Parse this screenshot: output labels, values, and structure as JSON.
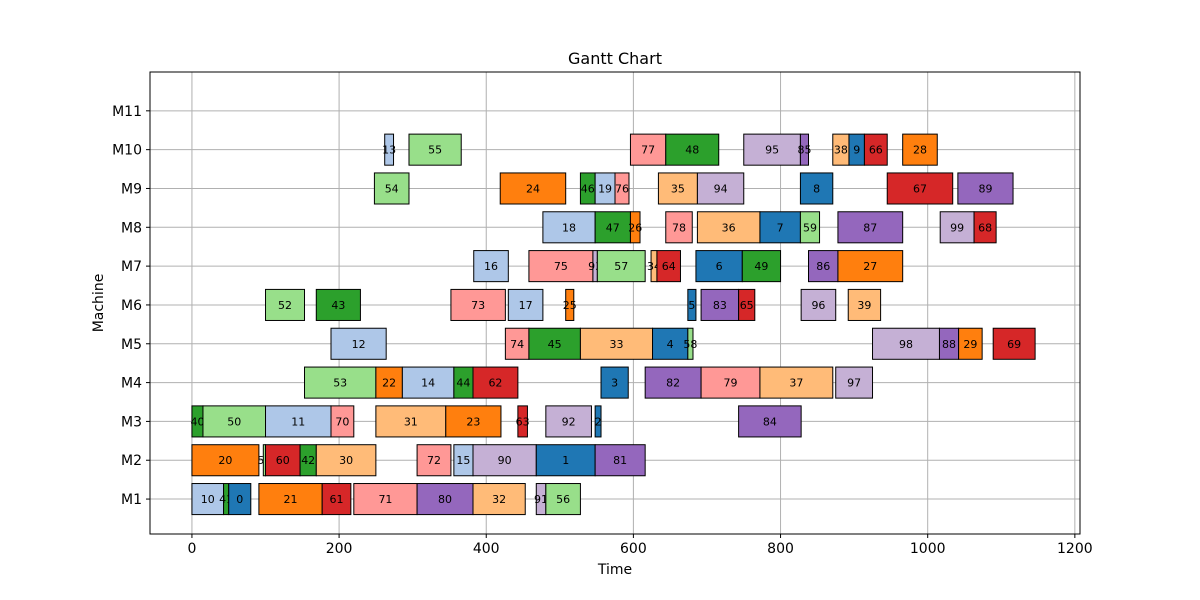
{
  "chart_data": {
    "type": "gantt",
    "title": "Gantt Chart",
    "xlabel": "Time",
    "ylabel": "Machine",
    "xlim": [
      -57,
      1207
    ],
    "ylim": [
      -0.9,
      11
    ],
    "xticks": [
      0,
      200,
      400,
      600,
      800,
      1000,
      1200
    ],
    "machines": [
      "M1",
      "M2",
      "M3",
      "M4",
      "M5",
      "M6",
      "M7",
      "M8",
      "M9",
      "M10",
      "M11"
    ],
    "grid": true,
    "colors": {
      "c_blue": "#1f77b4",
      "c_lightblue": "#aec7e8",
      "c_orange": "#ff7f0e",
      "c_lightorange": "#ffbb78",
      "c_green": "#2ca02c",
      "c_lightgreen": "#98df8a",
      "c_red": "#d62728",
      "c_pink": "#ff9896",
      "c_purple": "#9467bd",
      "c_lavender": "#c5b0d5"
    },
    "tasks": [
      {
        "machine": "M1",
        "job": "10",
        "start": 0,
        "end": 43,
        "color": "c_lightblue"
      },
      {
        "machine": "M1",
        "job": "41",
        "start": 43,
        "end": 50,
        "color": "c_green"
      },
      {
        "machine": "M1",
        "job": "0",
        "start": 50,
        "end": 80,
        "color": "c_blue"
      },
      {
        "machine": "M1",
        "job": "21",
        "start": 91,
        "end": 177,
        "color": "c_orange"
      },
      {
        "machine": "M1",
        "job": "61",
        "start": 177,
        "end": 216,
        "color": "c_red"
      },
      {
        "machine": "M1",
        "job": "71",
        "start": 220,
        "end": 306,
        "color": "c_pink"
      },
      {
        "machine": "M1",
        "job": "80",
        "start": 306,
        "end": 382,
        "color": "c_purple"
      },
      {
        "machine": "M1",
        "job": "32",
        "start": 382,
        "end": 453,
        "color": "c_lightorange"
      },
      {
        "machine": "M1",
        "job": "91",
        "start": 468,
        "end": 481,
        "color": "c_lavender"
      },
      {
        "machine": "M1",
        "job": "56",
        "start": 481,
        "end": 528,
        "color": "c_lightgreen"
      },
      {
        "machine": "M2",
        "job": "20",
        "start": 0,
        "end": 91,
        "color": "c_orange"
      },
      {
        "machine": "M2",
        "job": "51",
        "start": 97,
        "end": 100,
        "color": "c_lightgreen"
      },
      {
        "machine": "M2",
        "job": "60",
        "start": 100,
        "end": 147,
        "color": "c_red"
      },
      {
        "machine": "M2",
        "job": "42",
        "start": 147,
        "end": 169,
        "color": "c_green"
      },
      {
        "machine": "M2",
        "job": "30",
        "start": 169,
        "end": 250,
        "color": "c_lightorange"
      },
      {
        "machine": "M2",
        "job": "72",
        "start": 306,
        "end": 352,
        "color": "c_pink"
      },
      {
        "machine": "M2",
        "job": "15",
        "start": 356,
        "end": 382,
        "color": "c_lightblue"
      },
      {
        "machine": "M2",
        "job": "90",
        "start": 382,
        "end": 468,
        "color": "c_lavender"
      },
      {
        "machine": "M2",
        "job": "1",
        "start": 468,
        "end": 548,
        "color": "c_blue"
      },
      {
        "machine": "M2",
        "job": "81",
        "start": 548,
        "end": 616,
        "color": "c_purple"
      },
      {
        "machine": "M3",
        "job": "40",
        "start": 0,
        "end": 15,
        "color": "c_green"
      },
      {
        "machine": "M3",
        "job": "50",
        "start": 15,
        "end": 100,
        "color": "c_lightgreen"
      },
      {
        "machine": "M3",
        "job": "11",
        "start": 100,
        "end": 189,
        "color": "c_lightblue"
      },
      {
        "machine": "M3",
        "job": "70",
        "start": 189,
        "end": 220,
        "color": "c_pink"
      },
      {
        "machine": "M3",
        "job": "31",
        "start": 250,
        "end": 345,
        "color": "c_lightorange"
      },
      {
        "machine": "M3",
        "job": "23",
        "start": 345,
        "end": 420,
        "color": "c_orange"
      },
      {
        "machine": "M3",
        "job": "63",
        "start": 443,
        "end": 456,
        "color": "c_red"
      },
      {
        "machine": "M3",
        "job": "92",
        "start": 481,
        "end": 543,
        "color": "c_lavender"
      },
      {
        "machine": "M3",
        "job": "2",
        "start": 548,
        "end": 556,
        "color": "c_blue"
      },
      {
        "machine": "M3",
        "job": "84",
        "start": 743,
        "end": 828,
        "color": "c_purple"
      },
      {
        "machine": "M4",
        "job": "53",
        "start": 153,
        "end": 250,
        "color": "c_lightgreen"
      },
      {
        "machine": "M4",
        "job": "22",
        "start": 250,
        "end": 286,
        "color": "c_orange"
      },
      {
        "machine": "M4",
        "job": "14",
        "start": 286,
        "end": 356,
        "color": "c_lightblue"
      },
      {
        "machine": "M4",
        "job": "44",
        "start": 356,
        "end": 382,
        "color": "c_green"
      },
      {
        "machine": "M4",
        "job": "62",
        "start": 382,
        "end": 443,
        "color": "c_red"
      },
      {
        "machine": "M4",
        "job": "3",
        "start": 556,
        "end": 593,
        "color": "c_blue"
      },
      {
        "machine": "M4",
        "job": "82",
        "start": 616,
        "end": 692,
        "color": "c_purple"
      },
      {
        "machine": "M4",
        "job": "79",
        "start": 692,
        "end": 772,
        "color": "c_pink"
      },
      {
        "machine": "M4",
        "job": "37",
        "start": 772,
        "end": 871,
        "color": "c_lightorange"
      },
      {
        "machine": "M4",
        "job": "97",
        "start": 875,
        "end": 925,
        "color": "c_lavender"
      },
      {
        "machine": "M5",
        "job": "12",
        "start": 189,
        "end": 264,
        "color": "c_lightblue"
      },
      {
        "machine": "M5",
        "job": "74",
        "start": 426,
        "end": 458,
        "color": "c_pink"
      },
      {
        "machine": "M5",
        "job": "45",
        "start": 458,
        "end": 528,
        "color": "c_green"
      },
      {
        "machine": "M5",
        "job": "33",
        "start": 528,
        "end": 626,
        "color": "c_lightorange"
      },
      {
        "machine": "M5",
        "job": "4",
        "start": 626,
        "end": 674,
        "color": "c_blue"
      },
      {
        "machine": "M5",
        "job": "58",
        "start": 674,
        "end": 681,
        "color": "c_lightgreen"
      },
      {
        "machine": "M5",
        "job": "98",
        "start": 925,
        "end": 1016,
        "color": "c_lavender"
      },
      {
        "machine": "M5",
        "job": "88",
        "start": 1016,
        "end": 1042,
        "color": "c_purple"
      },
      {
        "machine": "M5",
        "job": "29",
        "start": 1042,
        "end": 1074,
        "color": "c_orange"
      },
      {
        "machine": "M5",
        "job": "69",
        "start": 1089,
        "end": 1146,
        "color": "c_red"
      },
      {
        "machine": "M6",
        "job": "52",
        "start": 100,
        "end": 153,
        "color": "c_lightgreen"
      },
      {
        "machine": "M6",
        "job": "43",
        "start": 169,
        "end": 229,
        "color": "c_green"
      },
      {
        "machine": "M6",
        "job": "73",
        "start": 352,
        "end": 426,
        "color": "c_pink"
      },
      {
        "machine": "M6",
        "job": "17",
        "start": 430,
        "end": 477,
        "color": "c_lightblue"
      },
      {
        "machine": "M6",
        "job": "25",
        "start": 508,
        "end": 519,
        "color": "c_orange"
      },
      {
        "machine": "M6",
        "job": "5",
        "start": 674,
        "end": 685,
        "color": "c_blue"
      },
      {
        "machine": "M6",
        "job": "83",
        "start": 692,
        "end": 743,
        "color": "c_purple"
      },
      {
        "machine": "M6",
        "job": "65",
        "start": 743,
        "end": 765,
        "color": "c_red"
      },
      {
        "machine": "M6",
        "job": "96",
        "start": 828,
        "end": 875,
        "color": "c_lavender"
      },
      {
        "machine": "M6",
        "job": "39",
        "start": 892,
        "end": 936,
        "color": "c_lightorange"
      },
      {
        "machine": "M7",
        "job": "16",
        "start": 383,
        "end": 430,
        "color": "c_lightblue"
      },
      {
        "machine": "M7",
        "job": "75",
        "start": 458,
        "end": 545,
        "color": "c_pink"
      },
      {
        "machine": "M7",
        "job": "93",
        "start": 545,
        "end": 551,
        "color": "c_lavender"
      },
      {
        "machine": "M7",
        "job": "57",
        "start": 551,
        "end": 616,
        "color": "c_lightgreen"
      },
      {
        "machine": "M7",
        "job": "34",
        "start": 624,
        "end": 632,
        "color": "c_lightorange"
      },
      {
        "machine": "M7",
        "job": "64",
        "start": 632,
        "end": 664,
        "color": "c_red"
      },
      {
        "machine": "M7",
        "job": "6",
        "start": 685,
        "end": 748,
        "color": "c_blue"
      },
      {
        "machine": "M7",
        "job": "49",
        "start": 748,
        "end": 800,
        "color": "c_green"
      },
      {
        "machine": "M7",
        "job": "86",
        "start": 838,
        "end": 878,
        "color": "c_purple"
      },
      {
        "machine": "M7",
        "job": "27",
        "start": 878,
        "end": 966,
        "color": "c_orange"
      },
      {
        "machine": "M8",
        "job": "18",
        "start": 477,
        "end": 548,
        "color": "c_lightblue"
      },
      {
        "machine": "M8",
        "job": "47",
        "start": 548,
        "end": 596,
        "color": "c_green"
      },
      {
        "machine": "M8",
        "job": "26",
        "start": 596,
        "end": 609,
        "color": "c_orange"
      },
      {
        "machine": "M8",
        "job": "78",
        "start": 644,
        "end": 680,
        "color": "c_pink"
      },
      {
        "machine": "M8",
        "job": "36",
        "start": 687,
        "end": 772,
        "color": "c_lightorange"
      },
      {
        "machine": "M8",
        "job": "7",
        "start": 772,
        "end": 827,
        "color": "c_blue"
      },
      {
        "machine": "M8",
        "job": "59",
        "start": 827,
        "end": 853,
        "color": "c_lightgreen"
      },
      {
        "machine": "M8",
        "job": "87",
        "start": 878,
        "end": 966,
        "color": "c_purple"
      },
      {
        "machine": "M8",
        "job": "99",
        "start": 1017,
        "end": 1063,
        "color": "c_lavender"
      },
      {
        "machine": "M8",
        "job": "68",
        "start": 1063,
        "end": 1093,
        "color": "c_red"
      },
      {
        "machine": "M9",
        "job": "54",
        "start": 248,
        "end": 295,
        "color": "c_lightgreen"
      },
      {
        "machine": "M9",
        "job": "24",
        "start": 419,
        "end": 508,
        "color": "c_orange"
      },
      {
        "machine": "M9",
        "job": "46",
        "start": 528,
        "end": 548,
        "color": "c_green"
      },
      {
        "machine": "M9",
        "job": "19",
        "start": 548,
        "end": 575,
        "color": "c_lightblue"
      },
      {
        "machine": "M9",
        "job": "76",
        "start": 575,
        "end": 594,
        "color": "c_pink"
      },
      {
        "machine": "M9",
        "job": "35",
        "start": 634,
        "end": 687,
        "color": "c_lightorange"
      },
      {
        "machine": "M9",
        "job": "94",
        "start": 687,
        "end": 750,
        "color": "c_lavender"
      },
      {
        "machine": "M9",
        "job": "8",
        "start": 827,
        "end": 871,
        "color": "c_blue"
      },
      {
        "machine": "M9",
        "job": "67",
        "start": 945,
        "end": 1034,
        "color": "c_red"
      },
      {
        "machine": "M9",
        "job": "89",
        "start": 1041,
        "end": 1116,
        "color": "c_purple"
      },
      {
        "machine": "M10",
        "job": "13",
        "start": 262,
        "end": 274,
        "color": "c_lightblue"
      },
      {
        "machine": "M10",
        "job": "55",
        "start": 295,
        "end": 366,
        "color": "c_lightgreen"
      },
      {
        "machine": "M10",
        "job": "77",
        "start": 596,
        "end": 644,
        "color": "c_pink"
      },
      {
        "machine": "M10",
        "job": "48",
        "start": 644,
        "end": 716,
        "color": "c_green"
      },
      {
        "machine": "M10",
        "job": "95",
        "start": 750,
        "end": 827,
        "color": "c_lavender"
      },
      {
        "machine": "M10",
        "job": "85",
        "start": 827,
        "end": 838,
        "color": "c_purple"
      },
      {
        "machine": "M10",
        "job": "38",
        "start": 871,
        "end": 893,
        "color": "c_lightorange"
      },
      {
        "machine": "M10",
        "job": "9",
        "start": 893,
        "end": 914,
        "color": "c_blue"
      },
      {
        "machine": "M10",
        "job": "66",
        "start": 914,
        "end": 945,
        "color": "c_red"
      },
      {
        "machine": "M10",
        "job": "28",
        "start": 966,
        "end": 1013,
        "color": "c_orange"
      }
    ]
  }
}
